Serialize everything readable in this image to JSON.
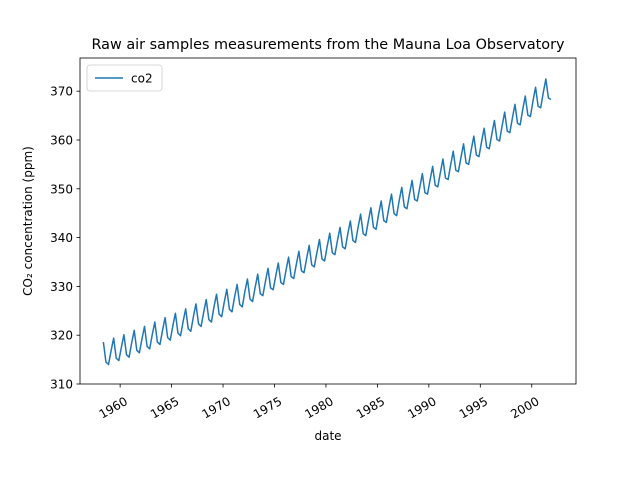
{
  "chart_data": {
    "type": "line",
    "title": "Raw air samples measurements from the Mauna Loa Observatory",
    "xlabel": "date",
    "ylabel": "CO₂ concentration (ppm)",
    "legend": "upper left",
    "xlim": [
      1956.1,
      2004.3
    ],
    "xticks": [
      1960,
      1965,
      1970,
      1975,
      1980,
      1985,
      1990,
      1995,
      2000
    ],
    "ylim": [
      310,
      376.8
    ],
    "yticks": [
      310,
      320,
      330,
      340,
      350,
      360,
      370
    ],
    "x": [
      1958.37,
      1958.62,
      1958.87,
      1959.12,
      1959.37,
      1959.62,
      1959.87,
      1960.12,
      1960.37,
      1960.62,
      1960.87,
      1961.12,
      1961.37,
      1961.62,
      1961.87,
      1962.12,
      1962.37,
      1962.62,
      1962.87,
      1963.12,
      1963.37,
      1963.62,
      1963.87,
      1964.12,
      1964.37,
      1964.62,
      1964.87,
      1965.12,
      1965.37,
      1965.62,
      1965.87,
      1966.12,
      1966.37,
      1966.62,
      1966.87,
      1967.12,
      1967.37,
      1967.62,
      1967.87,
      1968.12,
      1968.37,
      1968.62,
      1968.87,
      1969.12,
      1969.37,
      1969.62,
      1969.87,
      1970.12,
      1970.37,
      1970.62,
      1970.87,
      1971.12,
      1971.37,
      1971.62,
      1971.87,
      1972.12,
      1972.37,
      1972.62,
      1972.87,
      1973.12,
      1973.37,
      1973.62,
      1973.87,
      1974.12,
      1974.37,
      1974.62,
      1974.87,
      1975.12,
      1975.37,
      1975.62,
      1975.87,
      1976.12,
      1976.37,
      1976.62,
      1976.87,
      1977.12,
      1977.37,
      1977.62,
      1977.87,
      1978.12,
      1978.37,
      1978.62,
      1978.87,
      1979.12,
      1979.37,
      1979.62,
      1979.87,
      1980.12,
      1980.37,
      1980.62,
      1980.87,
      1981.12,
      1981.37,
      1981.62,
      1981.87,
      1982.12,
      1982.37,
      1982.62,
      1982.87,
      1983.12,
      1983.37,
      1983.62,
      1983.87,
      1984.12,
      1984.37,
      1984.62,
      1984.87,
      1985.12,
      1985.37,
      1985.62,
      1985.87,
      1986.12,
      1986.37,
      1986.62,
      1986.87,
      1987.12,
      1987.37,
      1987.62,
      1987.87,
      1988.12,
      1988.37,
      1988.62,
      1988.87,
      1989.12,
      1989.37,
      1989.62,
      1989.87,
      1990.12,
      1990.37,
      1990.62,
      1990.87,
      1991.12,
      1991.37,
      1991.62,
      1991.87,
      1992.12,
      1992.37,
      1992.62,
      1992.87,
      1993.12,
      1993.37,
      1993.62,
      1993.87,
      1994.12,
      1994.37,
      1994.62,
      1994.87,
      1995.12,
      1995.37,
      1995.62,
      1995.87,
      1996.12,
      1996.37,
      1996.62,
      1996.87,
      1997.12,
      1997.37,
      1997.62,
      1997.87,
      1998.12,
      1998.37,
      1998.62,
      1998.87,
      1999.12,
      1999.37,
      1999.62,
      1999.87,
      2000.12,
      2000.37,
      2000.62,
      2000.87,
      2001.12,
      2001.37,
      2001.62,
      2001.87
    ],
    "series": [
      {
        "name": "co2",
        "color": "#1f77b4",
        "values": [
          318.6,
          314.5,
          314.0,
          316.8,
          319.4,
          315.3,
          314.8,
          317.5,
          320.1,
          316.0,
          315.5,
          318.4,
          321.0,
          316.9,
          316.4,
          319.2,
          321.8,
          317.7,
          317.2,
          320.1,
          322.7,
          318.6,
          318.1,
          321.0,
          323.6,
          319.5,
          319.0,
          321.9,
          324.5,
          320.4,
          319.9,
          322.8,
          325.4,
          321.3,
          320.8,
          323.8,
          326.4,
          322.3,
          321.8,
          324.7,
          327.3,
          323.2,
          322.7,
          325.8,
          328.4,
          324.3,
          323.8,
          326.8,
          329.4,
          325.3,
          324.8,
          327.8,
          330.4,
          326.3,
          325.8,
          328.9,
          331.5,
          327.4,
          326.9,
          329.8,
          332.5,
          328.5,
          328.1,
          331.0,
          333.7,
          329.7,
          329.3,
          332.1,
          334.8,
          330.8,
          330.4,
          333.3,
          336.0,
          332.0,
          331.6,
          334.5,
          337.2,
          333.2,
          332.8,
          335.7,
          338.4,
          334.4,
          334.0,
          336.9,
          339.6,
          335.6,
          335.2,
          338.2,
          340.9,
          336.9,
          336.5,
          339.4,
          342.1,
          338.1,
          337.7,
          340.7,
          343.4,
          339.4,
          339.0,
          342.1,
          344.8,
          340.8,
          340.4,
          343.4,
          346.1,
          342.1,
          341.7,
          344.8,
          347.5,
          343.5,
          343.1,
          346.2,
          348.9,
          344.9,
          344.5,
          347.6,
          350.3,
          346.3,
          345.9,
          348.9,
          351.7,
          347.8,
          347.5,
          350.3,
          353.1,
          349.2,
          348.9,
          351.8,
          354.6,
          350.7,
          350.4,
          353.3,
          356.1,
          352.2,
          351.9,
          354.9,
          357.7,
          353.8,
          353.5,
          356.4,
          359.2,
          355.3,
          355.0,
          358.0,
          360.8,
          356.9,
          356.6,
          359.6,
          362.4,
          358.5,
          358.2,
          361.2,
          364.0,
          360.1,
          359.8,
          362.9,
          365.7,
          361.8,
          361.5,
          364.5,
          367.3,
          363.4,
          363.1,
          366.2,
          369.0,
          365.1,
          364.8,
          368.0,
          370.8,
          366.9,
          366.6,
          369.7,
          372.5,
          368.6,
          368.3
        ]
      }
    ]
  }
}
